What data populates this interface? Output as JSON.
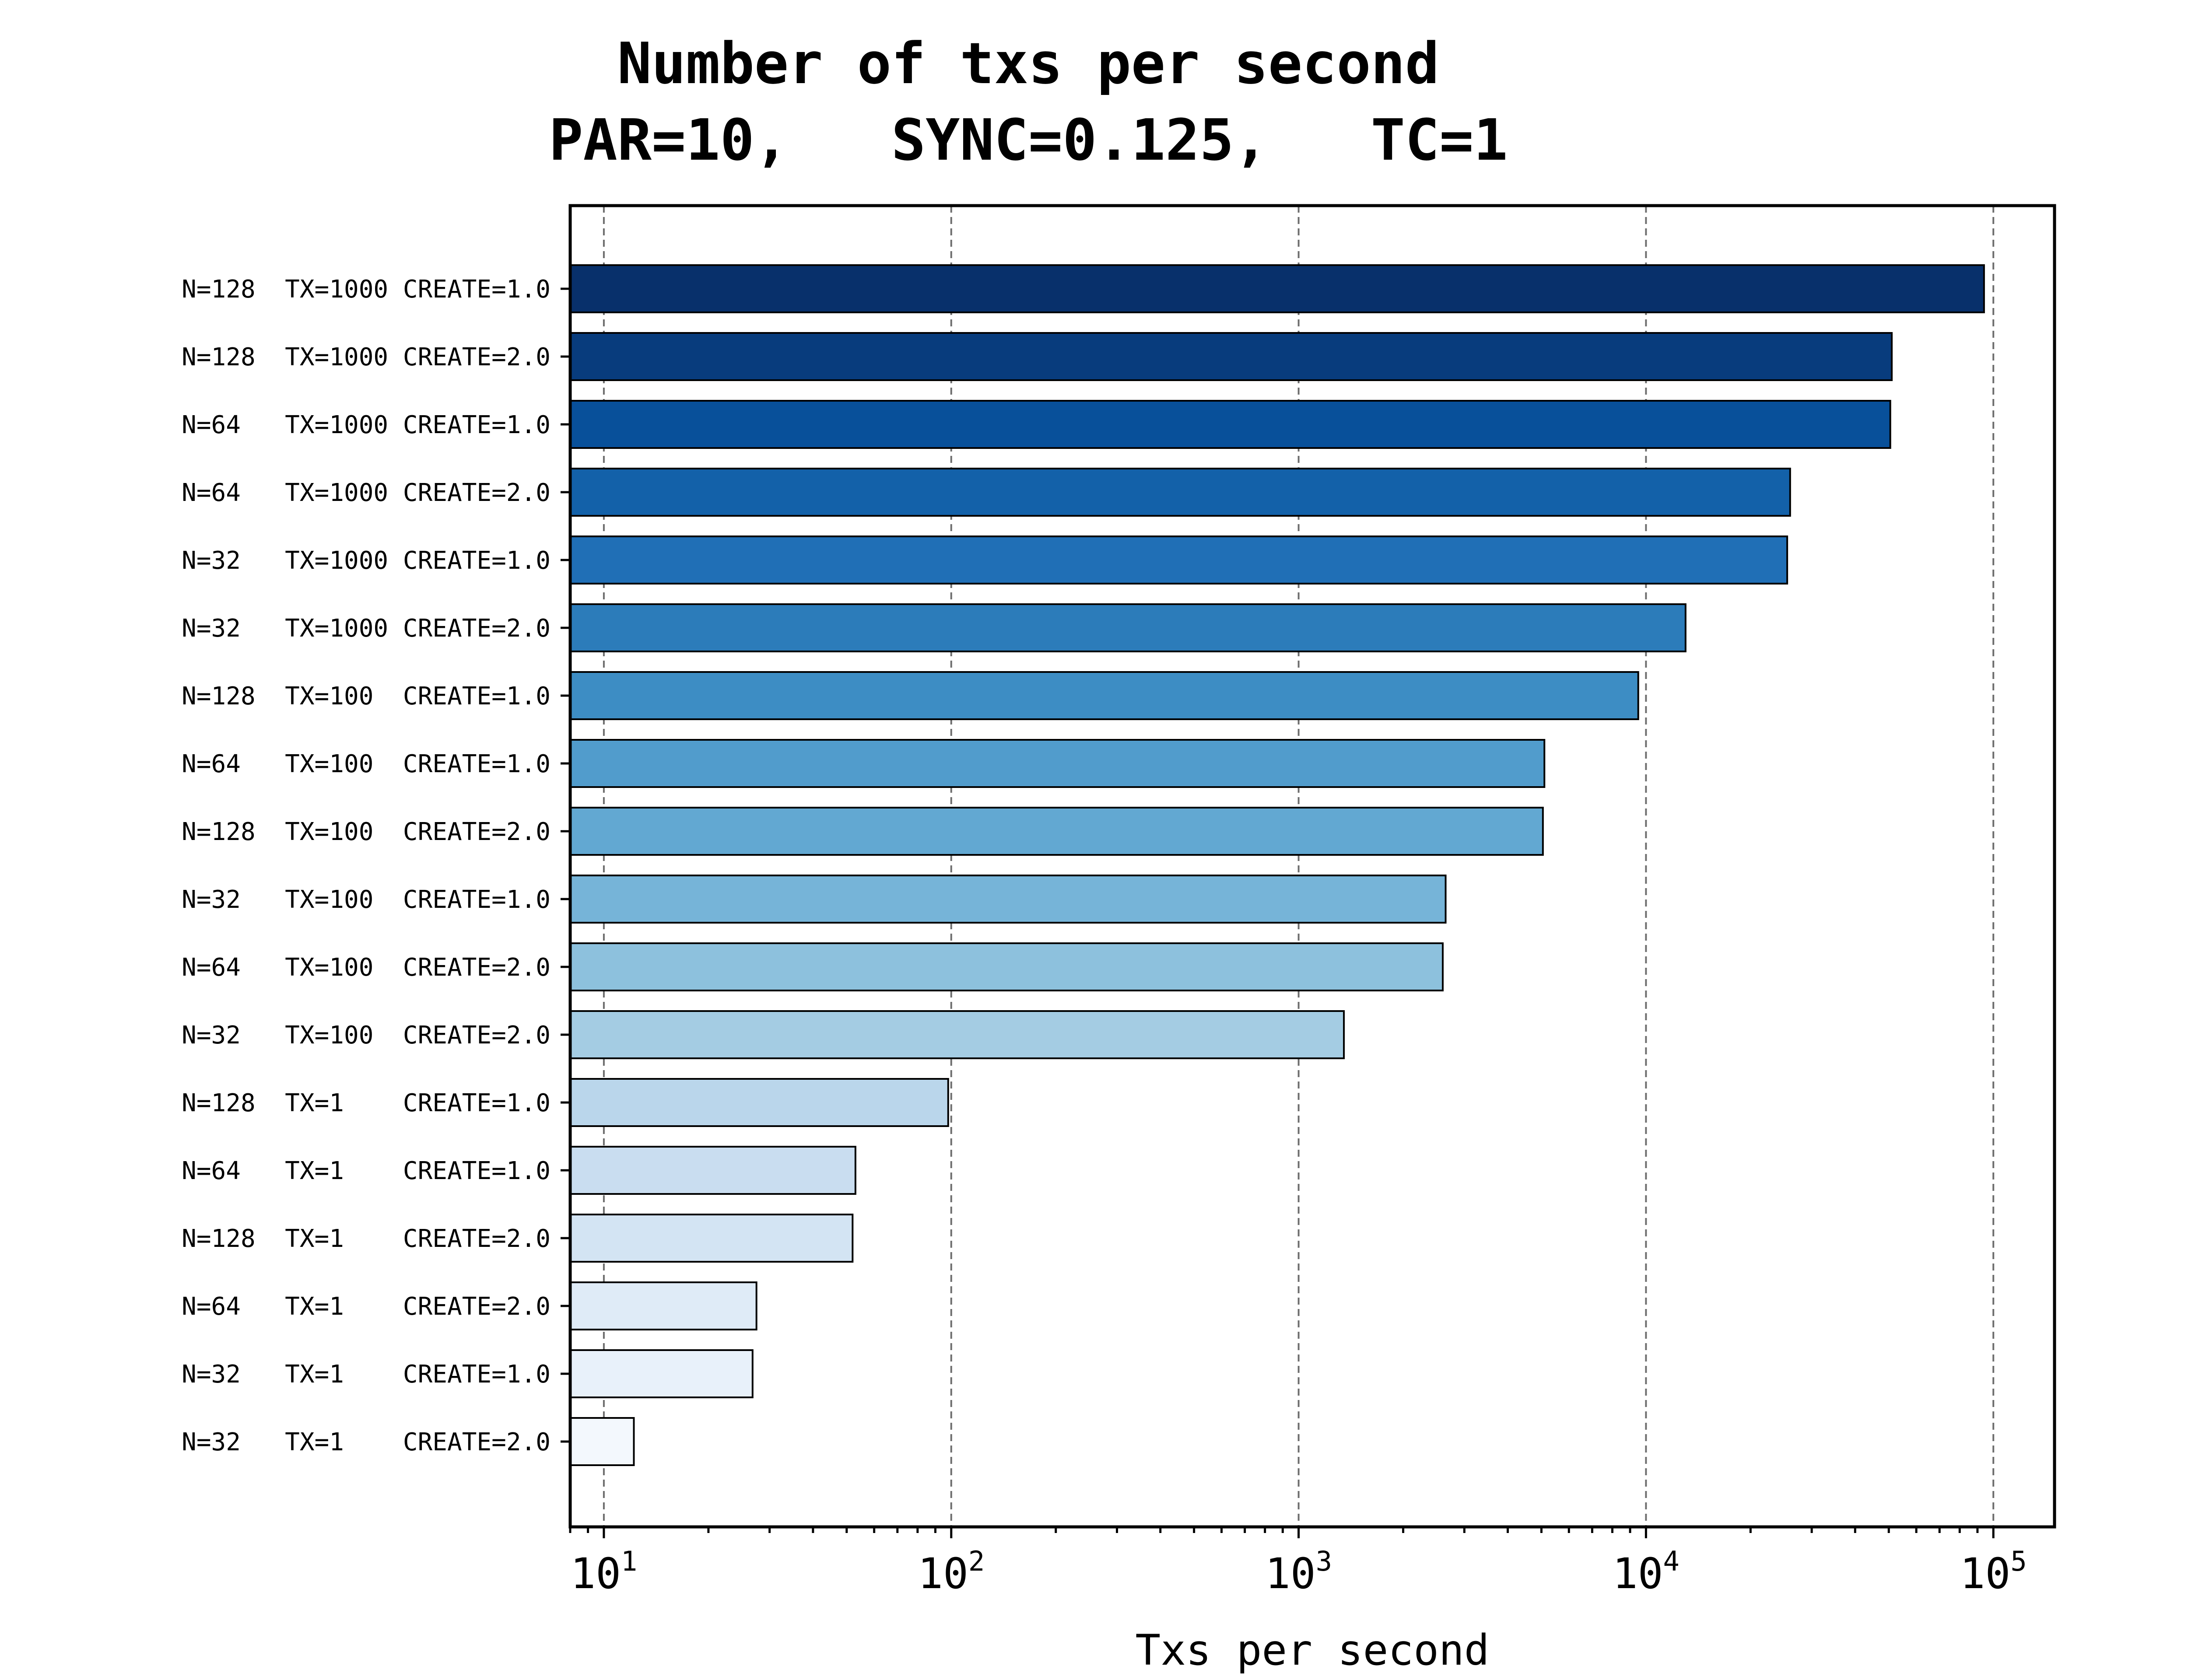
{
  "chart_data": {
    "type": "bar",
    "orientation": "horizontal",
    "title": "Number of txs per second",
    "subtitle": "PAR=10,   SYNC=0.125,   TC=1",
    "xlabel": "Txs per second",
    "ylabel": "",
    "xscale": "log",
    "xlim": [
      8,
      150000
    ],
    "xticks": [
      10,
      100,
      1000,
      10000,
      100000
    ],
    "xtick_labels": [
      {
        "base": "10",
        "exp": "1"
      },
      {
        "base": "10",
        "exp": "2"
      },
      {
        "base": "10",
        "exp": "3"
      },
      {
        "base": "10",
        "exp": "4"
      },
      {
        "base": "10",
        "exp": "5"
      }
    ],
    "grid": "x, dashed",
    "colormap": "Blues",
    "categories": [
      "N=128  TX=1000 CREATE=1.0",
      "N=128  TX=1000 CREATE=2.0",
      "N=64   TX=1000 CREATE=1.0",
      "N=64   TX=1000 CREATE=2.0",
      "N=32   TX=1000 CREATE=1.0",
      "N=32   TX=1000 CREATE=2.0",
      "N=128  TX=100  CREATE=1.0",
      "N=64   TX=100  CREATE=1.0",
      "N=128  TX=100  CREATE=2.0",
      "N=32   TX=100  CREATE=1.0",
      "N=64   TX=100  CREATE=2.0",
      "N=32   TX=100  CREATE=2.0",
      "N=128  TX=1    CREATE=1.0",
      "N=64   TX=1    CREATE=1.0",
      "N=128  TX=1    CREATE=2.0",
      "N=64   TX=1    CREATE=2.0",
      "N=32   TX=1    CREATE=1.0",
      "N=32   TX=1    CREATE=2.0"
    ],
    "values": [
      94000,
      51000,
      50500,
      26000,
      25500,
      13000,
      9500,
      5100,
      5050,
      2650,
      2600,
      1350,
      98,
      53,
      52,
      27.5,
      26.8,
      12.2
    ],
    "colors": [
      "#08306b",
      "#083c7d",
      "#08509a",
      "#1361a9",
      "#206fb6",
      "#2c7cba",
      "#3d8dc4",
      "#519ccc",
      "#62a8d2",
      "#76b4d8",
      "#8dc1dd",
      "#a4cce3",
      "#bad6eb",
      "#c9ddf0",
      "#d3e4f3",
      "#dfebf7",
      "#e8f1fa",
      "#f3f8fd"
    ]
  }
}
